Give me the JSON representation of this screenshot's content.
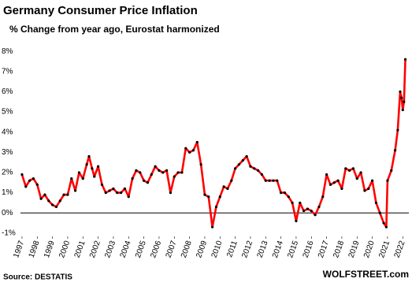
{
  "chart_data": {
    "type": "line",
    "title": "Germany Consumer Price Inflation",
    "subtitle": "% Change from year ago, Eurostat harmonized",
    "source": "Source: DESTATIS",
    "credit": "WOLFSTREET.com",
    "color": "#ff0000",
    "marker_color": "#000000",
    "x": [
      1997.0,
      1997.25,
      1997.5,
      1997.75,
      1998.0,
      1998.25,
      1998.5,
      1998.75,
      1999.0,
      1999.25,
      1999.5,
      1999.75,
      2000.0,
      2000.25,
      2000.5,
      2000.75,
      2001.0,
      2001.25,
      2001.4,
      2001.6,
      2001.75,
      2002.0,
      2002.25,
      2002.5,
      2002.75,
      2003.0,
      2003.25,
      2003.5,
      2003.75,
      2004.0,
      2004.25,
      2004.5,
      2004.75,
      2005.0,
      2005.25,
      2005.5,
      2005.75,
      2006.0,
      2006.25,
      2006.5,
      2006.75,
      2007.0,
      2007.25,
      2007.5,
      2007.75,
      2008.0,
      2008.25,
      2008.5,
      2008.75,
      2009.0,
      2009.25,
      2009.5,
      2009.75,
      2010.0,
      2010.25,
      2010.5,
      2010.75,
      2011.0,
      2011.25,
      2011.5,
      2011.75,
      2012.0,
      2012.25,
      2012.5,
      2012.75,
      2013.0,
      2013.25,
      2013.5,
      2013.75,
      2014.0,
      2014.25,
      2014.5,
      2014.75,
      2015.0,
      2015.25,
      2015.5,
      2015.75,
      2016.0,
      2016.25,
      2016.5,
      2016.75,
      2017.0,
      2017.25,
      2017.5,
      2017.75,
      2018.0,
      2018.25,
      2018.5,
      2018.75,
      2019.0,
      2019.25,
      2019.5,
      2019.75,
      2020.0,
      2020.25,
      2020.5,
      2020.75,
      2020.92,
      2021.0,
      2021.25,
      2021.5,
      2021.67,
      2021.83,
      2021.92,
      2022.0,
      2022.08,
      2022.17
    ],
    "values": [
      1.9,
      1.3,
      1.6,
      1.7,
      1.4,
      0.7,
      0.9,
      0.6,
      0.4,
      0.3,
      0.6,
      0.9,
      0.9,
      1.7,
      1.1,
      2.0,
      1.7,
      2.4,
      2.8,
      2.2,
      1.8,
      2.3,
      1.4,
      1.0,
      1.1,
      1.2,
      1.0,
      1.0,
      1.2,
      0.8,
      1.7,
      2.1,
      2.0,
      1.6,
      1.5,
      1.9,
      2.3,
      2.1,
      2.0,
      2.1,
      1.0,
      1.8,
      2.0,
      2.0,
      3.2,
      3.0,
      3.1,
      3.5,
      2.4,
      0.9,
      0.8,
      -0.7,
      0.3,
      0.8,
      1.3,
      1.2,
      1.6,
      2.2,
      2.4,
      2.6,
      2.8,
      2.3,
      2.2,
      2.1,
      1.9,
      1.6,
      1.6,
      1.6,
      1.6,
      1.0,
      1.0,
      0.8,
      0.5,
      -0.4,
      0.5,
      0.1,
      0.2,
      0.1,
      -0.1,
      0.3,
      0.8,
      1.9,
      1.4,
      1.5,
      1.6,
      1.2,
      2.2,
      2.1,
      2.2,
      1.7,
      2.0,
      1.1,
      1.2,
      1.6,
      0.5,
      0.0,
      -0.5,
      -0.7,
      1.6,
      2.1,
      3.1,
      4.1,
      6.0,
      5.7,
      5.1,
      5.5,
      7.6
    ],
    "xlim": [
      1996.9,
      2022.4
    ],
    "xticks": [
      1997,
      1998,
      1999,
      2000,
      2001,
      2002,
      2003,
      2004,
      2005,
      2006,
      2007,
      2008,
      2009,
      2010,
      2011,
      2012,
      2013,
      2014,
      2015,
      2016,
      2017,
      2018,
      2019,
      2020,
      2021,
      2022
    ],
    "ylim": [
      -1.2,
      8.2
    ],
    "yticks": [
      {
        "value": -1,
        "label": "-1%"
      },
      {
        "value": 0,
        "label": "0%"
      },
      {
        "value": 1,
        "label": "1%"
      },
      {
        "value": 2,
        "label": "2%"
      },
      {
        "value": 3,
        "label": "3%"
      },
      {
        "value": 4,
        "label": "4%"
      },
      {
        "value": 5,
        "label": "5%"
      },
      {
        "value": 6,
        "label": "6%"
      },
      {
        "value": 7,
        "label": "7%"
      },
      {
        "value": 8,
        "label": "8%"
      }
    ],
    "zero_line": true
  }
}
